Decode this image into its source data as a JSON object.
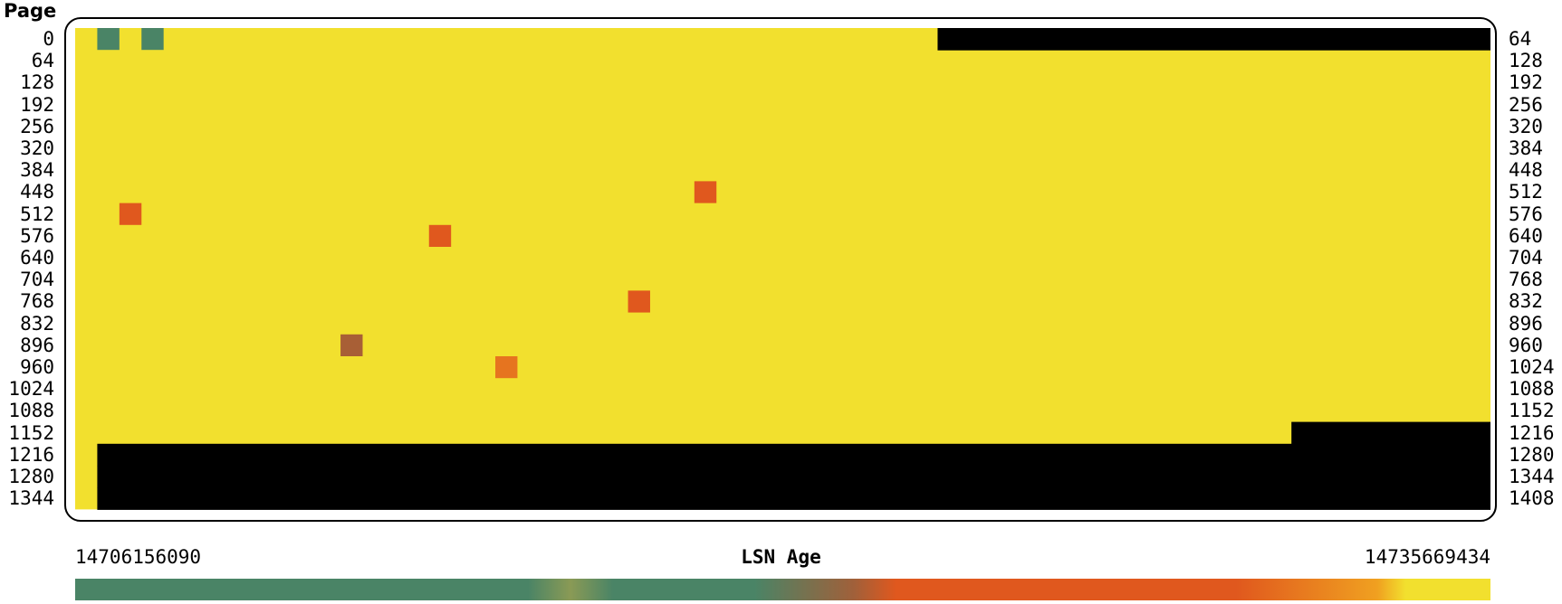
{
  "chart_data": {
    "type": "heatmap",
    "ylabel": "Page",
    "left_ticks": [
      "0",
      "64",
      "128",
      "192",
      "256",
      "320",
      "384",
      "448",
      "512",
      "576",
      "640",
      "704",
      "768",
      "832",
      "896",
      "960",
      "1024",
      "1088",
      "1152",
      "1216",
      "1280",
      "1344"
    ],
    "right_ticks": [
      "64",
      "128",
      "192",
      "256",
      "320",
      "384",
      "448",
      "512",
      "576",
      "640",
      "704",
      "768",
      "832",
      "896",
      "960",
      "1024",
      "1088",
      "1152",
      "1216",
      "1280",
      "1344",
      "1408"
    ],
    "columns_per_row": 64,
    "default_value": 14735669434,
    "unused_color": "#000000",
    "unused_pages": [
      {
        "row": 0,
        "from_col": 39,
        "to_col": 63
      },
      {
        "row": 18,
        "from_col": 55,
        "to_col": 63
      },
      {
        "row": 19,
        "from_col": 1,
        "to_col": 63
      },
      {
        "row": 20,
        "from_col": 1,
        "to_col": 63
      },
      {
        "row": 21,
        "from_col": 1,
        "to_col": 63
      }
    ],
    "cells": [
      {
        "row": 0,
        "col": 1,
        "value": 14706156090
      },
      {
        "row": 0,
        "col": 3,
        "value": 14708500000
      },
      {
        "row": 7,
        "col": 28,
        "value": 14726000000
      },
      {
        "row": 8,
        "col": 2,
        "value": 14729500000
      },
      {
        "row": 9,
        "col": 16,
        "value": 14727000000
      },
      {
        "row": 12,
        "col": 25,
        "value": 14729000000
      },
      {
        "row": 14,
        "col": 12,
        "value": 14722500000
      },
      {
        "row": 15,
        "col": 19,
        "value": 14731500000
      },
      {
        "row": 17,
        "col": 12,
        "value": 14734000000
      }
    ],
    "colorbar": {
      "title": "LSN Age",
      "min_label": "14706156090",
      "max_label": "14735669434",
      "min": 14706156090,
      "max": 14735669434,
      "stops": [
        {
          "pos": 0.0,
          "color": "#4a8466"
        },
        {
          "pos": 0.32,
          "color": "#4a8466"
        },
        {
          "pos": 0.35,
          "color": "#8a9a55"
        },
        {
          "pos": 0.38,
          "color": "#4a8466"
        },
        {
          "pos": 0.48,
          "color": "#4a8466"
        },
        {
          "pos": 0.55,
          "color": "#a0603a"
        },
        {
          "pos": 0.58,
          "color": "#e0581e"
        },
        {
          "pos": 0.82,
          "color": "#e0581e"
        },
        {
          "pos": 0.92,
          "color": "#f0a020"
        },
        {
          "pos": 0.94,
          "color": "#f2e02e"
        },
        {
          "pos": 1.0,
          "color": "#f2e02e"
        }
      ]
    }
  }
}
